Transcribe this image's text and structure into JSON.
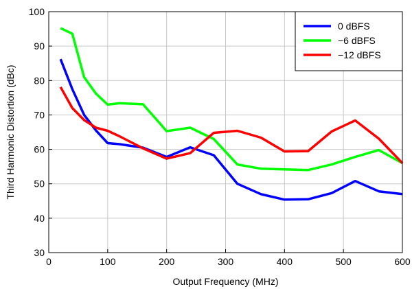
{
  "chart_data": {
    "type": "line",
    "xlabel": "Output Frequency (MHz)",
    "ylabel": "Third Harmonic Distortion (dBc)",
    "xlim": [
      0,
      600
    ],
    "ylim": [
      30,
      100
    ],
    "xticks": [
      0,
      100,
      200,
      300,
      400,
      500,
      600
    ],
    "yticks": [
      30,
      40,
      50,
      60,
      70,
      80,
      90,
      100
    ],
    "grid": true,
    "legend_position": "top-right",
    "series": [
      {
        "name": "0 dBFS",
        "color": "#0000ff",
        "x": [
          20,
          40,
          60,
          80,
          100,
          120,
          160,
          200,
          240,
          280,
          320,
          360,
          400,
          440,
          480,
          520,
          560,
          600
        ],
        "y": [
          86.2,
          77.5,
          70.0,
          65.5,
          61.8,
          61.5,
          60.5,
          57.8,
          60.6,
          58.3,
          50.0,
          47.0,
          45.4,
          45.5,
          47.3,
          50.8,
          47.8,
          47.0
        ]
      },
      {
        "name": "−6 dBFS",
        "color": "#00ff00",
        "x": [
          20,
          40,
          60,
          80,
          100,
          120,
          160,
          200,
          240,
          280,
          320,
          360,
          400,
          440,
          480,
          520,
          560,
          600
        ],
        "y": [
          95.2,
          93.6,
          81.0,
          76.2,
          73.0,
          73.4,
          73.1,
          65.3,
          66.3,
          63.0,
          55.6,
          54.4,
          54.2,
          54.0,
          55.6,
          57.8,
          59.8,
          56.0
        ]
      },
      {
        "name": "−12 dBFS",
        "color": "#ff0000",
        "x": [
          20,
          40,
          60,
          80,
          100,
          120,
          160,
          200,
          240,
          280,
          320,
          360,
          400,
          440,
          480,
          520,
          560,
          600
        ],
        "y": [
          78.1,
          72.0,
          68.5,
          66.3,
          65.4,
          63.8,
          60.3,
          57.3,
          58.9,
          64.8,
          65.4,
          63.4,
          59.4,
          59.5,
          65.2,
          68.4,
          63.1,
          56.0
        ]
      }
    ]
  }
}
